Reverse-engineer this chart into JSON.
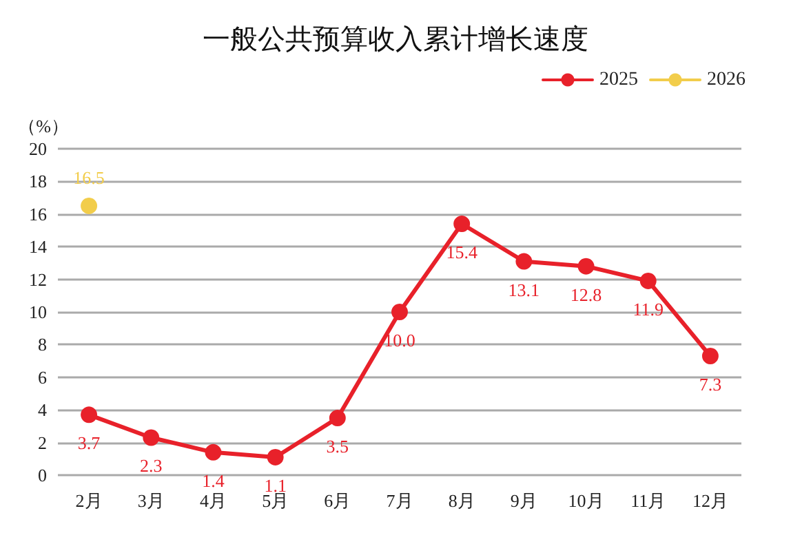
{
  "chart_data": {
    "type": "line",
    "title": "一般公共预算收入累计增长速度",
    "ylabel": "（%）",
    "categories": [
      "2月",
      "3月",
      "4月",
      "5月",
      "6月",
      "7月",
      "8月",
      "9月",
      "10月",
      "11月",
      "12月"
    ],
    "series": [
      {
        "name": "2025",
        "color": "#e8212a",
        "values": [
          3.7,
          2.3,
          1.4,
          1.1,
          3.5,
          10.0,
          15.4,
          13.1,
          12.8,
          11.9,
          7.3
        ],
        "value_labels": [
          "3.7",
          "2.3",
          "1.4",
          "1.1",
          "3.5",
          "10.0",
          "15.4",
          "13.1",
          "12.8",
          "11.9",
          "7.3"
        ]
      },
      {
        "name": "2026",
        "color": "#f2cd4b",
        "values": [
          16.5,
          null,
          null,
          null,
          null,
          null,
          null,
          null,
          null,
          null,
          null
        ],
        "value_labels": [
          "16.5",
          null,
          null,
          null,
          null,
          null,
          null,
          null,
          null,
          null,
          null
        ]
      }
    ],
    "ylim": [
      0,
      20
    ],
    "yticks": [
      0,
      2,
      4,
      6,
      8,
      10,
      12,
      14,
      16,
      18,
      20
    ],
    "grid": "y",
    "legend": "top right",
    "marker": "circle",
    "line_style": "solid"
  }
}
